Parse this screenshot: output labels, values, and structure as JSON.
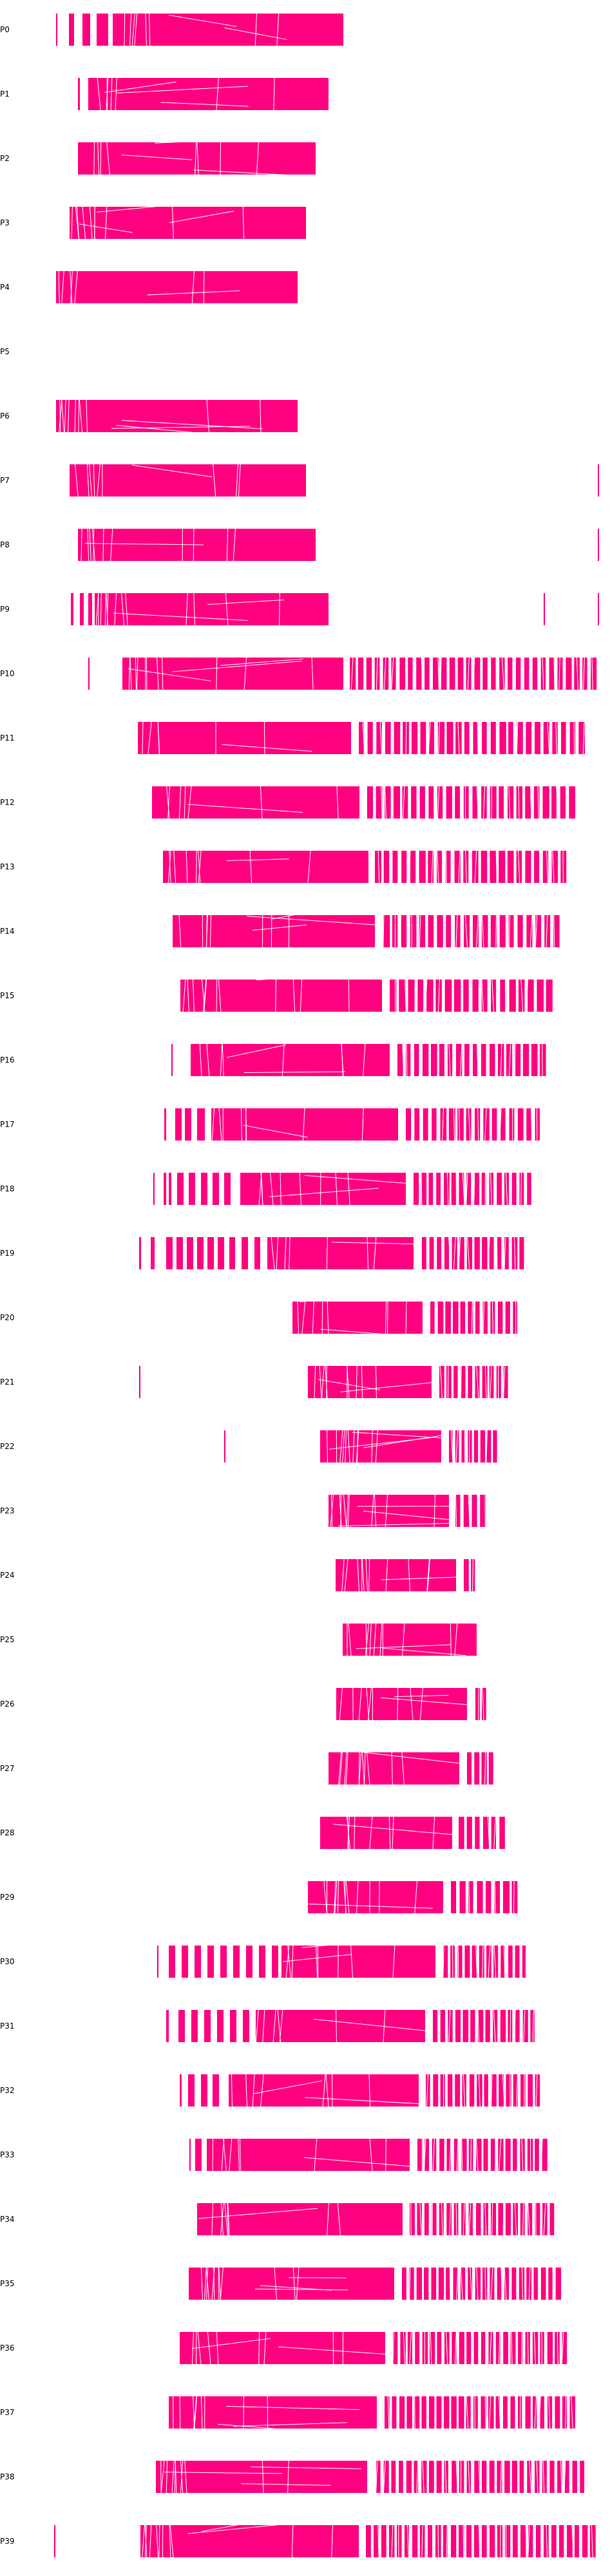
{
  "colors": {
    "bar": "#ff0080",
    "stripe": "#ffffff"
  },
  "labels": [
    "P0",
    "P1",
    "P2",
    "P3",
    "P4",
    "P5",
    "P6",
    "P7",
    "P8",
    "P9",
    "P10",
    "P11",
    "P12",
    "P13",
    "P14",
    "P15",
    "P16",
    "P17",
    "P18",
    "P19",
    "P20",
    "P21",
    "P22",
    "P23",
    "P24",
    "P25",
    "P26",
    "P27",
    "P28",
    "P29",
    "P30",
    "P31",
    "P32",
    "P33",
    "P34",
    "P35",
    "P36",
    "P37",
    "P38",
    "P39"
  ]
}
